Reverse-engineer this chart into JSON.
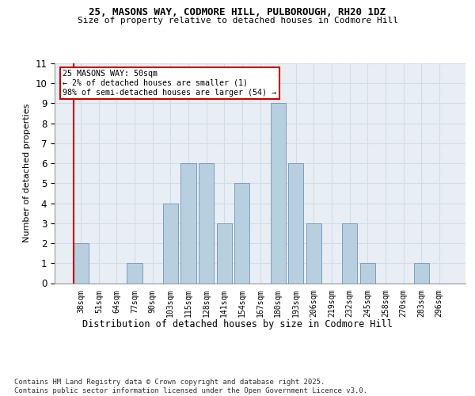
{
  "title1": "25, MASONS WAY, CODMORE HILL, PULBOROUGH, RH20 1DZ",
  "title2": "Size of property relative to detached houses in Codmore Hill",
  "xlabel": "Distribution of detached houses by size in Codmore Hill",
  "ylabel": "Number of detached properties",
  "categories": [
    "38sqm",
    "51sqm",
    "64sqm",
    "77sqm",
    "90sqm",
    "103sqm",
    "115sqm",
    "128sqm",
    "141sqm",
    "154sqm",
    "167sqm",
    "180sqm",
    "193sqm",
    "206sqm",
    "219sqm",
    "232sqm",
    "245sqm",
    "258sqm",
    "270sqm",
    "283sqm",
    "296sqm"
  ],
  "values": [
    2,
    0,
    0,
    1,
    0,
    4,
    6,
    6,
    3,
    5,
    0,
    9,
    6,
    3,
    0,
    3,
    1,
    0,
    0,
    1,
    0
  ],
  "bar_color": "#b8cfe0",
  "highlight_bar_color": "#b8cfe0",
  "grid_color": "#d0dce8",
  "background_color": "#e8eef4",
  "annotation_text": "25 MASONS WAY: 50sqm\n← 2% of detached houses are smaller (1)\n98% of semi-detached houses are larger (54) →",
  "annotation_box_color": "#ffffff",
  "annotation_border_color": "#cc0000",
  "property_line_color": "#cc0000",
  "ylim": [
    0,
    11
  ],
  "yticks": [
    0,
    1,
    2,
    3,
    4,
    5,
    6,
    7,
    8,
    9,
    10,
    11
  ],
  "footer": "Contains HM Land Registry data © Crown copyright and database right 2025.\nContains public sector information licensed under the Open Government Licence v3.0.",
  "footer_fontsize": 6.5
}
